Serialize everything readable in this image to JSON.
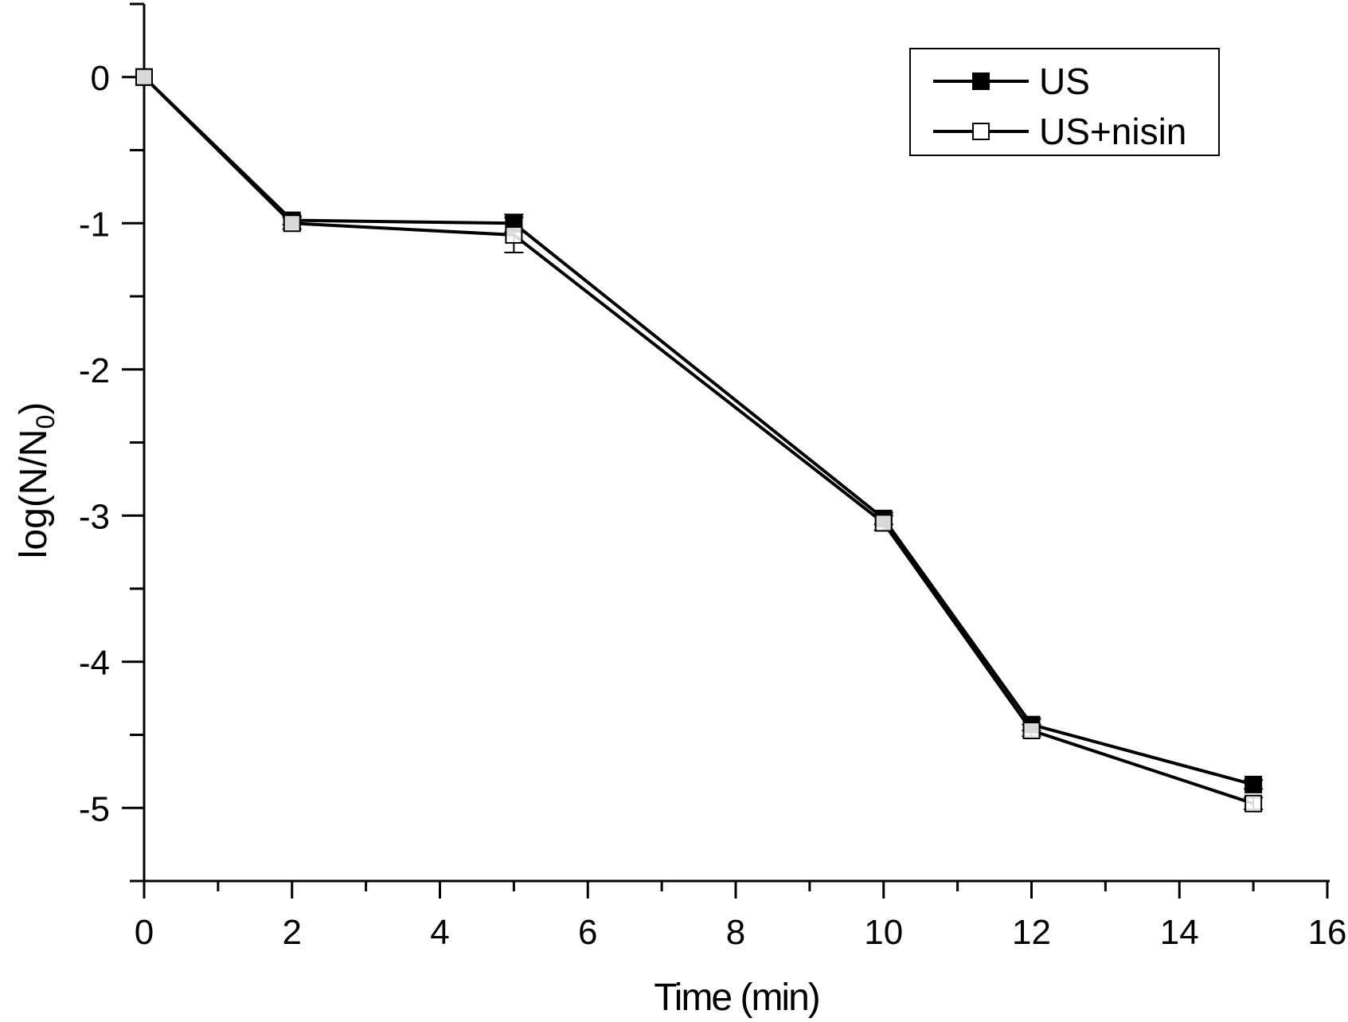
{
  "chart_data": {
    "type": "line",
    "xlabel": "Time (min)",
    "ylabel": {
      "main": "log(N/N",
      "sub": "0",
      "close": ")"
    },
    "xlim": [
      0,
      16
    ],
    "ylim": [
      -5.5,
      0.5
    ],
    "xticks": [
      0,
      2,
      4,
      6,
      8,
      10,
      12,
      14,
      16
    ],
    "xtick_labels": [
      "0",
      "2",
      "4",
      "6",
      "8",
      "10",
      "12",
      "14",
      "16"
    ],
    "yticks": [
      0,
      -1,
      -2,
      -3,
      -4,
      -5
    ],
    "ytick_labels": [
      "0",
      "-1",
      "-2",
      "-3",
      "-4",
      "-5"
    ],
    "legend_position": "top-right",
    "grid": false,
    "series": [
      {
        "name": "US",
        "marker": "filled-square",
        "color": "#000000",
        "x": [
          0,
          2,
          5,
          10,
          12,
          15
        ],
        "y": [
          0,
          -0.98,
          -1.0,
          -3.02,
          -4.43,
          -4.84
        ],
        "err": [
          0,
          0.03,
          0.06,
          0.04,
          0.04,
          0.03
        ]
      },
      {
        "name": "US+nisin",
        "marker": "open-square",
        "color": "#000000",
        "x": [
          0,
          2,
          5,
          10,
          12,
          15
        ],
        "y": [
          0,
          -1.0,
          -1.08,
          -3.05,
          -4.47,
          -4.97
        ],
        "err": [
          0,
          0.04,
          0.12,
          0.05,
          0.04,
          0.04
        ]
      }
    ]
  }
}
